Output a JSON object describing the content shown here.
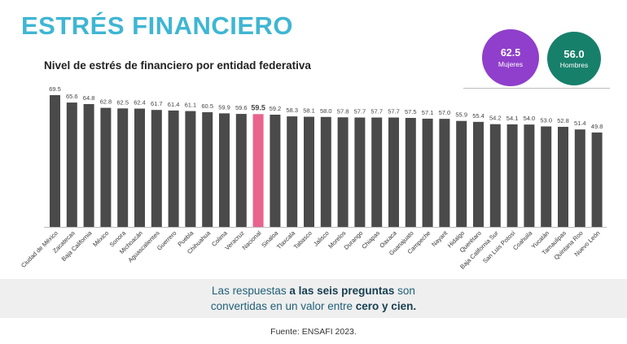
{
  "header": {
    "title": "ESTRÉS FINANCIERO",
    "subtitle": "Nivel de estrés de financiero por entidad federativa"
  },
  "stats": {
    "women": {
      "value": "62.5",
      "label": "Mujeres",
      "color": "#8f3fcb"
    },
    "men": {
      "value": "56.0",
      "label": "Hombres",
      "color": "#17806b"
    }
  },
  "note": {
    "line1_a": "Las respuestas ",
    "line1_b": "a las seis preguntas",
    "line1_c": " son",
    "line2_a": "convertidas en un valor entre ",
    "line2_b": "cero y cien."
  },
  "source": "Fuente: ENSAFI 2023.",
  "chart_data": {
    "type": "bar",
    "title": "Nivel de estrés de financiero por entidad federativa",
    "categories": [
      "Ciudad de México",
      "Zacatecas",
      "Baja California",
      "México",
      "Sonora",
      "Michoacán",
      "Aguascalientes",
      "Guerrero",
      "Puebla",
      "Chihuahua",
      "Colima",
      "Veracruz",
      "Nacional",
      "Sinaloa",
      "Tlaxcala",
      "Tabasco",
      "Jalisco",
      "Morelos",
      "Durango",
      "Chiapas",
      "Oaxaca",
      "Guanajuato",
      "Campeche",
      "Nayarit",
      "Hidalgo",
      "Querétaro",
      "Baja California Sur",
      "San Luis Potosí",
      "Coahuila",
      "Yucatán",
      "Tamaulipas",
      "Quintana Roo",
      "Nuevo León"
    ],
    "values": [
      69.5,
      65.6,
      64.8,
      62.8,
      62.5,
      62.4,
      61.7,
      61.4,
      61.1,
      60.5,
      59.9,
      59.6,
      59.5,
      59.2,
      58.3,
      58.1,
      58.0,
      57.8,
      57.7,
      57.7,
      57.7,
      57.5,
      57.1,
      57.0,
      55.9,
      55.4,
      54.2,
      54.1,
      54.0,
      53.0,
      52.8,
      51.4,
      49.8
    ],
    "value_labels": [
      "69.5",
      "65.6",
      "64.8",
      "62.8",
      "62.5",
      "62.4",
      "61.7",
      "61.4",
      "61.1",
      "60.5",
      "59.9",
      "59.6",
      "59.5",
      "59.2",
      "58.3",
      "58.1",
      "58.0",
      "57.8",
      "57.7",
      "57.7",
      "57.7",
      "57.5",
      "57.1",
      "57.0",
      "55.9",
      "55.4",
      "54.2",
      "54.1",
      "54.0",
      "53.0",
      "52.8",
      "51.4",
      "49.8"
    ],
    "highlight": "Nacional",
    "bar_color": "#4a4a4a",
    "highlight_color": "#e8638e",
    "ylim": [
      0,
      70
    ],
    "grid": false,
    "legend": "none"
  }
}
